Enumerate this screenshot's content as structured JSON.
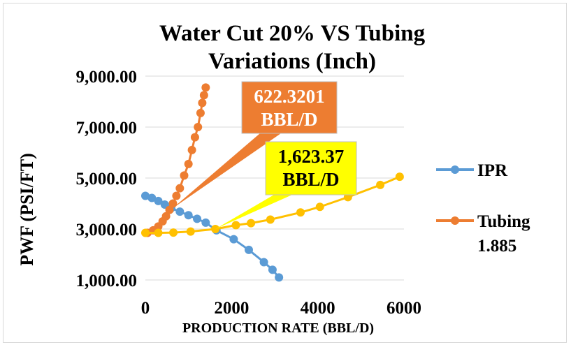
{
  "chart_data": {
    "type": "scatter",
    "title_lines": [
      "Water Cut 20% VS Tubing",
      "Variations (Inch)"
    ],
    "xlabel": "PRODUCTION RATE (BBL/D)",
    "ylabel": "PWF (PSI/FT)",
    "xlim": [
      0,
      6000
    ],
    "ylim": [
      1000,
      9000
    ],
    "x_ticks": [
      0,
      2000,
      4000,
      6000
    ],
    "x_tick_labels": [
      "0",
      "2000",
      "4000",
      "6000"
    ],
    "y_ticks": [
      1000,
      3000,
      5000,
      7000,
      9000
    ],
    "y_tick_labels": [
      "1,000.00",
      "3,000.00",
      "5,000.00",
      "7,000.00",
      "9,000.00"
    ],
    "grid": "horizontal",
    "legend_position": "right",
    "series": [
      {
        "name": "IPR",
        "color": "#5b9bd5",
        "x": [
          0,
          150,
          300,
          450,
          600,
          800,
          1000,
          1200,
          1400,
          1650,
          2050,
          2400,
          2750,
          2950,
          3100
        ],
        "y": [
          4300,
          4220,
          4100,
          3960,
          3820,
          3680,
          3540,
          3400,
          3250,
          2950,
          2600,
          2180,
          1700,
          1400,
          1100
        ]
      },
      {
        "name": "Tubing 1.885",
        "legend_lines": [
          "Tubing",
          "1.885"
        ],
        "color": "#ed7d31",
        "x": [
          50,
          180,
          300,
          400,
          480,
          560,
          640,
          720,
          800,
          900,
          1000,
          1080,
          1150,
          1220,
          1280,
          1320,
          1360,
          1400
        ],
        "y": [
          2850,
          2950,
          3100,
          3300,
          3500,
          3750,
          4000,
          4300,
          4600,
          5100,
          5550,
          6100,
          6600,
          7000,
          7550,
          7950,
          8250,
          8550
        ]
      },
      {
        "name": "",
        "color": "#ffc000",
        "x": [
          0,
          300,
          650,
          1050,
          1623,
          2100,
          2450,
          2900,
          3600,
          4050,
          4700,
          5450,
          5900
        ],
        "y": [
          2850,
          2850,
          2860,
          2900,
          3000,
          3150,
          3230,
          3370,
          3650,
          3870,
          4250,
          4730,
          5050
        ]
      }
    ],
    "annotations": [
      {
        "lines": [
          "622.3201",
          "BBL/D"
        ],
        "fill": "#ed7d31",
        "text_color": "#ffffff",
        "point_x": 622.3201,
        "point_y": 3800
      },
      {
        "lines": [
          "1,623.37",
          "BBL/D"
        ],
        "fill": "#ffff00",
        "text_color": "#000000",
        "point_x": 1623.37,
        "point_y": 3000
      }
    ]
  }
}
